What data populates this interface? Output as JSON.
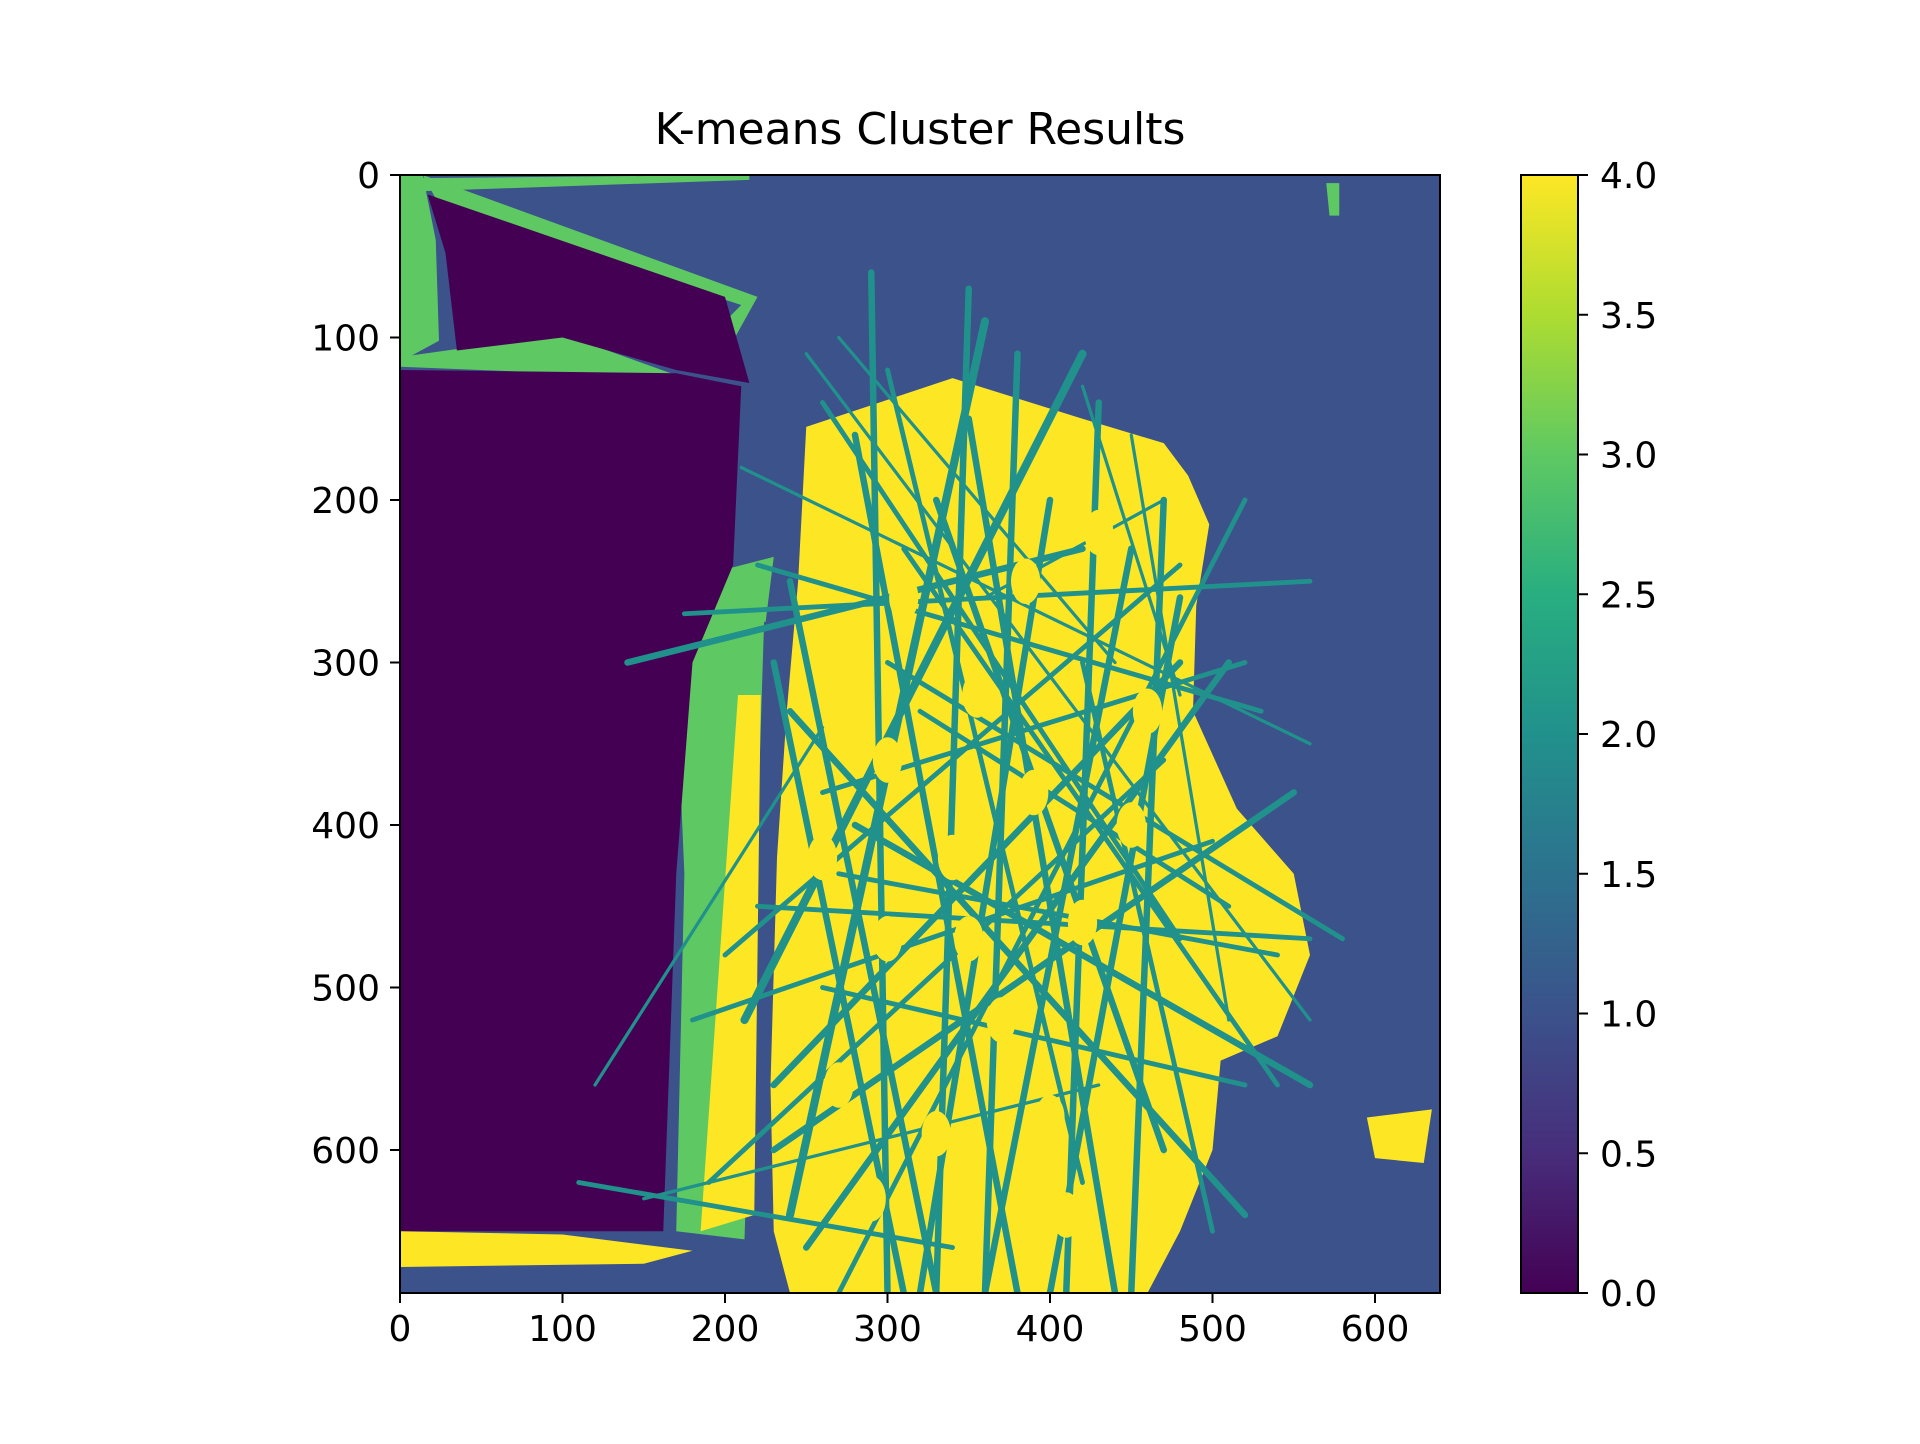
{
  "chart_data": {
    "type": "heatmap",
    "title": "K-means Cluster Results",
    "xlabel": "",
    "ylabel": "",
    "image_width": 640,
    "image_height": 688,
    "xlim": [
      0,
      640
    ],
    "ylim": [
      688,
      0
    ],
    "x_ticks": [
      0,
      100,
      200,
      300,
      400,
      500,
      600
    ],
    "y_ticks": [
      0,
      100,
      200,
      300,
      400,
      500,
      600
    ],
    "colorbar": {
      "range": [
        0.0,
        4.0
      ],
      "ticks": [
        "0.0",
        "0.5",
        "1.0",
        "1.5",
        "2.0",
        "2.5",
        "3.0",
        "3.5",
        "4.0"
      ],
      "colormap": "viridis"
    },
    "clusters": [
      {
        "label": 0,
        "color": "#440154"
      },
      {
        "label": 1,
        "color": "#3b528b"
      },
      {
        "label": 2,
        "color": "#21918c"
      },
      {
        "label": 3,
        "color": "#5ec962"
      },
      {
        "label": 4,
        "color": "#fde725"
      }
    ],
    "grid": false
  }
}
